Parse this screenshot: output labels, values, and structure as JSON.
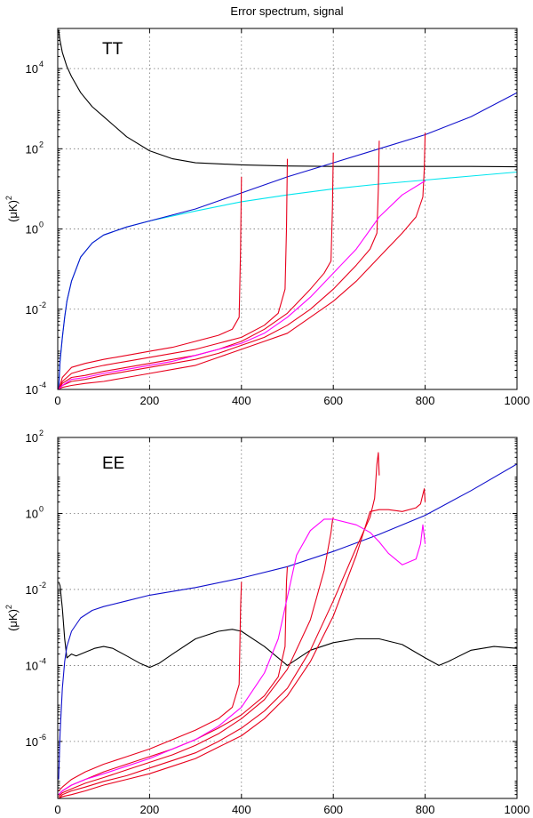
{
  "figure": {
    "title": "Error spectrum, signal"
  },
  "chart_data": [
    {
      "type": "line",
      "panel_label": "TT",
      "title": "Error spectrum, signal",
      "xlabel": "",
      "ylabel_base": "(μK)",
      "ylabel_exp": "2",
      "xlim": [
        0,
        1000
      ],
      "ylim_log10": [
        -4,
        5
      ],
      "yscale": "log",
      "grid": true,
      "x_ticks": [
        "0",
        "200",
        "400",
        "600",
        "800",
        "1000"
      ],
      "y_ticks": [
        {
          "base": "10",
          "exp": "-4",
          "log": -4
        },
        {
          "base": "10",
          "exp": "-2",
          "log": -2
        },
        {
          "base": "10",
          "exp": "0",
          "log": 0
        },
        {
          "base": "10",
          "exp": "2",
          "log": 2
        },
        {
          "base": "10",
          "exp": "4",
          "log": 4
        }
      ],
      "series": [
        {
          "name": "black",
          "color": "#000000",
          "x": [
            2,
            5,
            10,
            20,
            30,
            50,
            75,
            100,
            150,
            200,
            250,
            300,
            400,
            500,
            600,
            700,
            800,
            900,
            1000
          ],
          "y_log10": [
            4.95,
            4.7,
            4.4,
            4.05,
            3.8,
            3.4,
            3.05,
            2.8,
            2.3,
            1.95,
            1.75,
            1.65,
            1.6,
            1.57,
            1.56,
            1.56,
            1.56,
            1.56,
            1.55
          ]
        },
        {
          "name": "cyan",
          "color": "#00e5ee",
          "x": [
            2,
            5,
            10,
            15,
            20,
            30,
            50,
            75,
            100,
            150,
            200,
            300,
            400,
            500,
            600,
            700,
            800,
            900,
            1000
          ],
          "y_log10": [
            -4,
            -3.3,
            -2.7,
            -2.2,
            -1.8,
            -1.3,
            -0.7,
            -0.35,
            -0.15,
            0.05,
            0.2,
            0.45,
            0.68,
            0.85,
            1.0,
            1.12,
            1.22,
            1.32,
            1.42
          ]
        },
        {
          "name": "blue",
          "color": "#1010cc",
          "x": [
            2,
            5,
            10,
            15,
            20,
            30,
            50,
            75,
            100,
            150,
            200,
            300,
            400,
            500,
            600,
            700,
            800,
            900,
            1000
          ],
          "y_log10": [
            -4,
            -3.3,
            -2.7,
            -2.2,
            -1.8,
            -1.3,
            -0.7,
            -0.35,
            -0.15,
            0.05,
            0.2,
            0.5,
            0.9,
            1.3,
            1.65,
            2.0,
            2.35,
            2.8,
            3.4
          ]
        },
        {
          "name": "red-400",
          "color": "#e8001c",
          "x": [
            2,
            10,
            30,
            60,
            100,
            150,
            200,
            250,
            300,
            350,
            380,
            395,
            398,
            400
          ],
          "y_log10": [
            -4,
            -3.7,
            -3.45,
            -3.35,
            -3.25,
            -3.15,
            -3.05,
            -2.95,
            -2.8,
            -2.65,
            -2.5,
            -2.2,
            -0.5,
            1.3
          ]
        },
        {
          "name": "red-500",
          "color": "#e8001c",
          "x": [
            2,
            10,
            30,
            60,
            100,
            150,
            200,
            250,
            300,
            350,
            400,
            450,
            480,
            495,
            498,
            500
          ],
          "y_log10": [
            -4,
            -3.8,
            -3.6,
            -3.5,
            -3.4,
            -3.3,
            -3.2,
            -3.1,
            -3.0,
            -2.85,
            -2.7,
            -2.4,
            -2.1,
            -1.5,
            0,
            1.75
          ]
        },
        {
          "name": "red-600",
          "color": "#e8001c",
          "x": [
            2,
            10,
            30,
            60,
            100,
            150,
            200,
            250,
            300,
            350,
            400,
            450,
            500,
            550,
            580,
            595,
            598,
            600
          ],
          "y_log10": [
            -4,
            -3.85,
            -3.7,
            -3.65,
            -3.55,
            -3.45,
            -3.35,
            -3.25,
            -3.15,
            -3.0,
            -2.8,
            -2.5,
            -2.1,
            -1.5,
            -1.1,
            -0.8,
            0.5,
            1.9
          ]
        },
        {
          "name": "red-700",
          "color": "#e8001c",
          "x": [
            2,
            10,
            30,
            60,
            100,
            150,
            200,
            250,
            300,
            350,
            400,
            450,
            500,
            550,
            600,
            650,
            680,
            695,
            698,
            700
          ],
          "y_log10": [
            -4,
            -3.9,
            -3.8,
            -3.75,
            -3.65,
            -3.55,
            -3.45,
            -3.35,
            -3.25,
            -3.1,
            -2.9,
            -2.7,
            -2.4,
            -2.0,
            -1.5,
            -0.9,
            -0.5,
            -0.1,
            1.0,
            2.2
          ]
        },
        {
          "name": "red-800",
          "color": "#e8001c",
          "x": [
            2,
            10,
            30,
            60,
            100,
            150,
            200,
            250,
            300,
            350,
            400,
            450,
            500,
            550,
            600,
            650,
            700,
            750,
            780,
            795,
            798,
            800
          ],
          "y_log10": [
            -4,
            -3.95,
            -3.9,
            -3.85,
            -3.8,
            -3.7,
            -3.6,
            -3.5,
            -3.4,
            -3.2,
            -3.0,
            -2.8,
            -2.6,
            -2.2,
            -1.8,
            -1.3,
            -0.7,
            -0.1,
            0.3,
            0.8,
            1.5,
            2.4
          ]
        },
        {
          "name": "magenta",
          "color": "#ff00ff",
          "x": [
            2,
            10,
            30,
            60,
            100,
            150,
            200,
            250,
            300,
            350,
            400,
            450,
            500,
            550,
            600,
            650,
            700,
            750,
            800
          ],
          "y_log10": [
            -4,
            -3.9,
            -3.75,
            -3.7,
            -3.6,
            -3.5,
            -3.4,
            -3.3,
            -3.15,
            -3.0,
            -2.85,
            -2.6,
            -2.2,
            -1.7,
            -1.1,
            -0.5,
            0.3,
            0.85,
            1.2
          ]
        }
      ]
    },
    {
      "type": "line",
      "panel_label": "EE",
      "xlabel": "",
      "ylabel_base": "(μK)",
      "ylabel_exp": "2",
      "xlim": [
        0,
        1000
      ],
      "ylim_log10": [
        -7.5,
        2
      ],
      "yscale": "log",
      "grid": true,
      "x_ticks": [
        "0",
        "200",
        "400",
        "600",
        "800",
        "1000"
      ],
      "y_ticks": [
        {
          "base": "10",
          "exp": "-6",
          "log": -6
        },
        {
          "base": "10",
          "exp": "-4",
          "log": -4
        },
        {
          "base": "10",
          "exp": "-2",
          "log": -2
        },
        {
          "base": "10",
          "exp": "0",
          "log": 0
        },
        {
          "base": "10",
          "exp": "2",
          "log": 2
        }
      ],
      "series": [
        {
          "name": "black",
          "color": "#000000",
          "x": [
            2,
            5,
            10,
            15,
            20,
            30,
            40,
            60,
            80,
            100,
            120,
            150,
            180,
            200,
            220,
            250,
            300,
            350,
            380,
            400,
            450,
            500,
            550,
            600,
            650,
            700,
            750,
            800,
            830,
            850,
            900,
            950,
            1000
          ],
          "y_log10": [
            -1.8,
            -1.9,
            -2.5,
            -3.3,
            -3.8,
            -3.7,
            -3.75,
            -3.65,
            -3.55,
            -3.5,
            -3.55,
            -3.75,
            -3.95,
            -4.05,
            -3.95,
            -3.7,
            -3.3,
            -3.1,
            -3.05,
            -3.1,
            -3.5,
            -4.0,
            -3.6,
            -3.4,
            -3.3,
            -3.3,
            -3.45,
            -3.8,
            -4.0,
            -3.9,
            -3.6,
            -3.5,
            -3.55
          ]
        },
        {
          "name": "blue",
          "color": "#1010cc",
          "x": [
            2,
            5,
            10,
            15,
            20,
            30,
            50,
            75,
            100,
            150,
            200,
            300,
            400,
            500,
            600,
            700,
            800,
            900,
            1000
          ],
          "y_log10": [
            -7,
            -5.8,
            -4.6,
            -3.9,
            -3.5,
            -3.1,
            -2.75,
            -2.55,
            -2.45,
            -2.3,
            -2.15,
            -1.95,
            -1.7,
            -1.4,
            -1.0,
            -0.55,
            -0.05,
            0.6,
            1.3
          ]
        },
        {
          "name": "red-400",
          "color": "#e8001c",
          "x": [
            2,
            10,
            30,
            60,
            100,
            150,
            200,
            250,
            300,
            350,
            380,
            395,
            398,
            400
          ],
          "y_log10": [
            -7.3,
            -7.2,
            -7.0,
            -6.8,
            -6.6,
            -6.4,
            -6.2,
            -5.95,
            -5.7,
            -5.4,
            -5.1,
            -4.5,
            -2.5,
            -1.8
          ]
        },
        {
          "name": "red-500",
          "color": "#e8001c",
          "x": [
            2,
            10,
            30,
            60,
            100,
            150,
            200,
            250,
            300,
            350,
            400,
            450,
            480,
            495,
            498,
            500
          ],
          "y_log10": [
            -7.4,
            -7.3,
            -7.15,
            -7.0,
            -6.8,
            -6.6,
            -6.4,
            -6.2,
            -5.95,
            -5.65,
            -5.3,
            -4.8,
            -4.3,
            -3.5,
            -1.8,
            -1.4
          ]
        },
        {
          "name": "red-600",
          "color": "#e8001c",
          "x": [
            2,
            10,
            30,
            60,
            100,
            150,
            200,
            250,
            300,
            350,
            400,
            450,
            500,
            550,
            580,
            595,
            598,
            600
          ],
          "y_log10": [
            -7.45,
            -7.35,
            -7.25,
            -7.1,
            -6.95,
            -6.75,
            -6.55,
            -6.35,
            -6.1,
            -5.8,
            -5.4,
            -4.9,
            -4.1,
            -2.8,
            -1.5,
            -0.5,
            -0.2,
            -0.1
          ]
        },
        {
          "name": "red-700",
          "color": "#e8001c",
          "x": [
            2,
            10,
            30,
            60,
            100,
            150,
            200,
            250,
            300,
            350,
            400,
            450,
            500,
            550,
            600,
            650,
            680,
            690,
            695,
            698,
            700
          ],
          "y_log10": [
            -7.5,
            -7.4,
            -7.3,
            -7.2,
            -7.05,
            -6.9,
            -6.7,
            -6.5,
            -6.3,
            -6.0,
            -5.65,
            -5.2,
            -4.6,
            -3.6,
            -2.3,
            -0.9,
            -0.1,
            0.4,
            1.3,
            1.6,
            1.0
          ]
        },
        {
          "name": "red-800",
          "color": "#e8001c",
          "x": [
            2,
            10,
            30,
            60,
            100,
            150,
            200,
            250,
            300,
            350,
            400,
            450,
            500,
            550,
            600,
            650,
            680,
            700,
            720,
            750,
            780,
            790,
            795,
            798,
            800
          ],
          "y_log10": [
            -7.5,
            -7.45,
            -7.4,
            -7.3,
            -7.15,
            -7.0,
            -6.85,
            -6.65,
            -6.45,
            -6.15,
            -5.85,
            -5.4,
            -4.8,
            -3.9,
            -2.7,
            -1.1,
            0.05,
            0.1,
            0.1,
            0.05,
            0.15,
            0.25,
            0.5,
            0.65,
            0.3
          ]
        },
        {
          "name": "magenta",
          "color": "#ff00ff",
          "x": [
            2,
            10,
            30,
            60,
            100,
            150,
            200,
            250,
            300,
            350,
            400,
            450,
            480,
            500,
            520,
            550,
            580,
            600,
            650,
            680,
            700,
            720,
            750,
            780,
            790,
            795,
            800
          ],
          "y_log10": [
            -7.4,
            -7.3,
            -7.15,
            -7.0,
            -6.85,
            -6.65,
            -6.45,
            -6.2,
            -5.95,
            -5.6,
            -5.1,
            -4.2,
            -3.3,
            -2.2,
            -1.1,
            -0.45,
            -0.15,
            -0.15,
            -0.3,
            -0.5,
            -0.75,
            -1.05,
            -1.35,
            -1.2,
            -0.8,
            -0.3,
            -0.8
          ]
        }
      ]
    }
  ]
}
